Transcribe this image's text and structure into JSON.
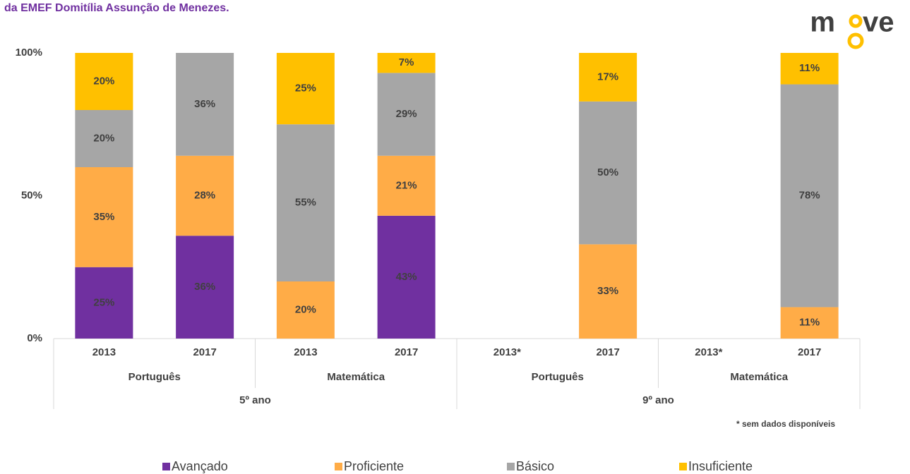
{
  "chart_data": {
    "type": "stacked_bar",
    "title": "da EMEF Domitília Assunção de Menezes.",
    "logo": [
      "m",
      "ve"
    ],
    "categories": [
      "2013",
      "2017",
      "2013",
      "2017",
      "2013*",
      "2017",
      "2013*",
      "2017"
    ],
    "subjects": [
      "Português",
      "Matemática",
      "Português",
      "Matemática"
    ],
    "grades": [
      "5º ano",
      "9º ano"
    ],
    "footnote": "* sem dados disponíveis",
    "ylim": [
      0,
      100
    ],
    "yticks": [
      {
        "value": 0,
        "label": "0%"
      },
      {
        "value": 50,
        "label": "50%"
      },
      {
        "value": 100,
        "label": "100%"
      }
    ],
    "series": [
      {
        "name": "Avançado",
        "color": "#7030a0",
        "values": [
          25,
          36,
          null,
          43,
          null,
          null,
          null,
          null
        ],
        "value_labels": [
          "25%",
          "36%",
          null,
          "43%",
          null,
          null,
          null,
          null
        ]
      },
      {
        "name": "Proficiente",
        "color": "#ffac47",
        "values": [
          35,
          28,
          20,
          21,
          null,
          33,
          null,
          11
        ],
        "value_labels": [
          "35%",
          "28%",
          "20%",
          "21%",
          null,
          "33%",
          null,
          "11%"
        ]
      },
      {
        "name": "Básico",
        "color": "#a6a6a6",
        "values": [
          20,
          36,
          55,
          29,
          null,
          50,
          null,
          78
        ],
        "value_labels": [
          "20%",
          "36%",
          "55%",
          "29%",
          null,
          "50%",
          null,
          "78%"
        ]
      },
      {
        "name": "Insuficiente",
        "color": "#ffc000",
        "values": [
          20,
          null,
          25,
          7,
          null,
          17,
          null,
          11
        ],
        "value_labels": [
          "20%",
          null,
          "25%",
          "7%",
          null,
          "17%",
          null,
          "11%"
        ]
      }
    ]
  }
}
